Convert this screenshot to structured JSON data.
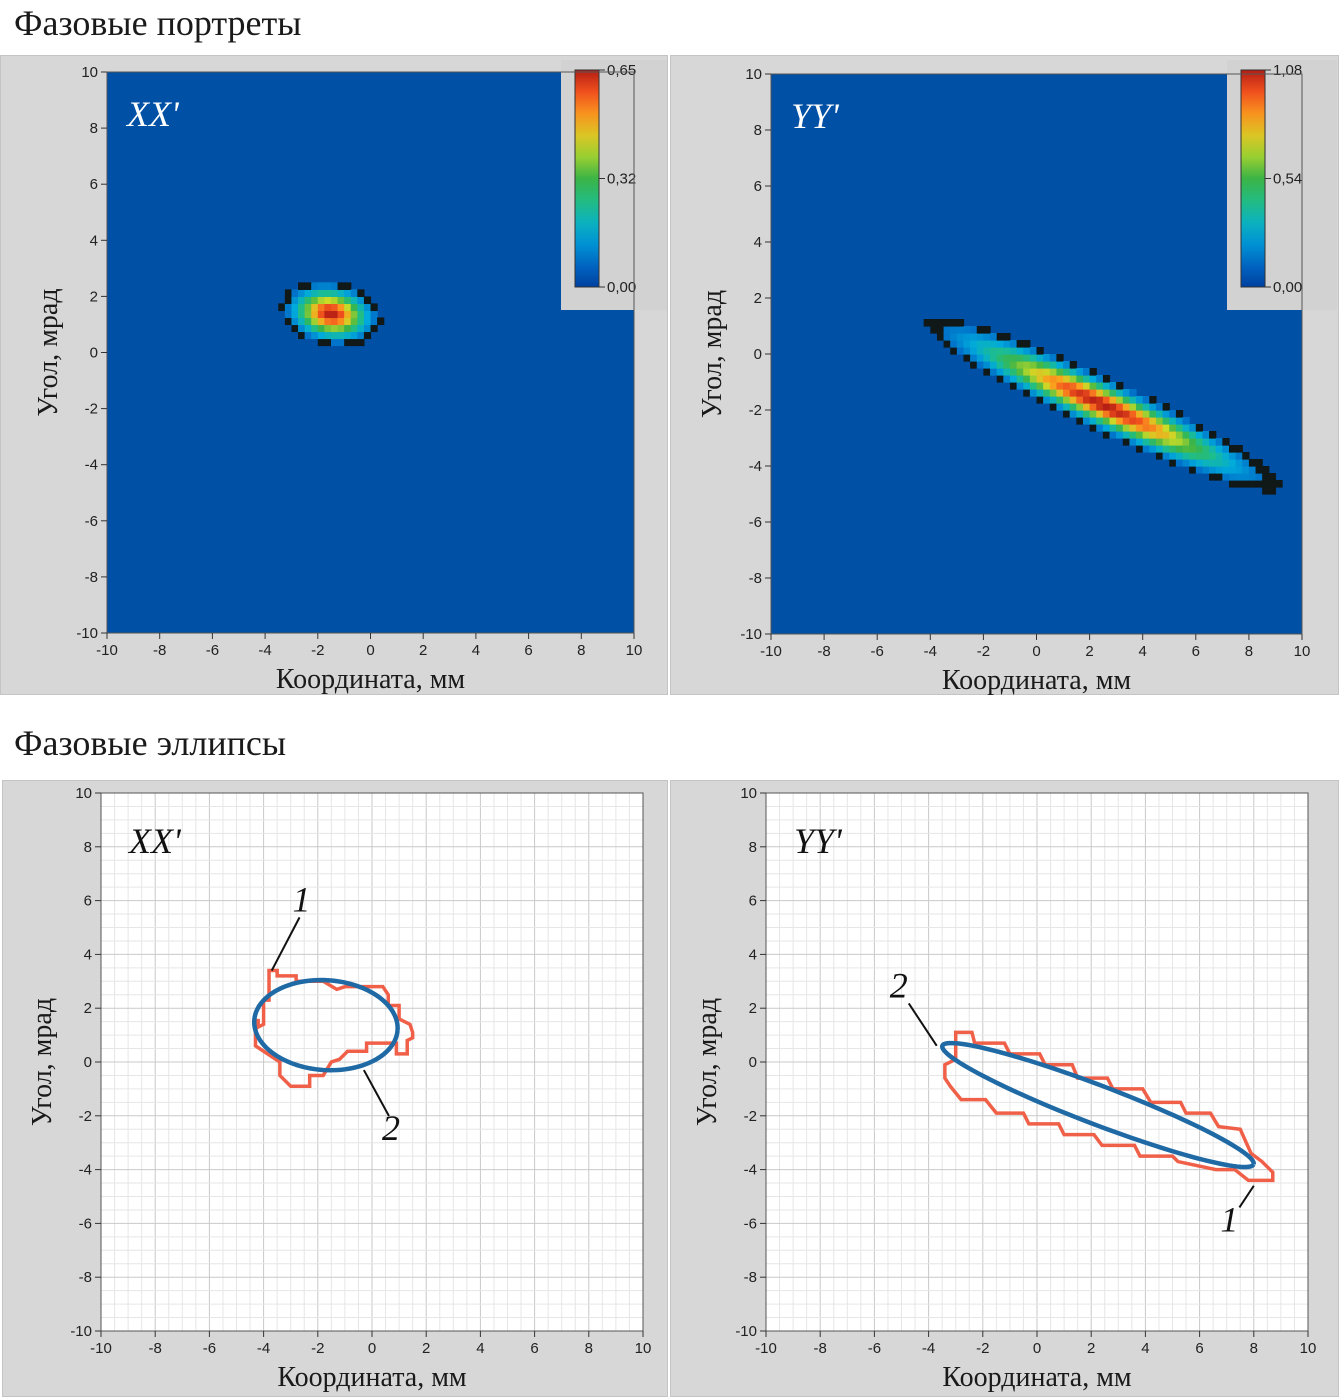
{
  "sections": {
    "top_title": "Фазовые портреты",
    "bottom_title": "Фазовые эллипсы"
  },
  "chart_data": [
    {
      "id": "portrait-xx",
      "type": "heatmap",
      "panel_label": "XX'",
      "xlabel": "Координата, мм",
      "ylabel": "Угол, мрад",
      "xlim": [
        -10,
        10
      ],
      "ylim": [
        -10,
        10
      ],
      "xticks": [
        -10,
        -8,
        -6,
        -4,
        -2,
        0,
        2,
        4,
        6,
        8,
        10
      ],
      "yticks": [
        -10,
        -8,
        -6,
        -4,
        -2,
        0,
        2,
        4,
        6,
        8,
        10
      ],
      "grid": false,
      "colorbar": {
        "ticks": [
          "0,65",
          "0,32",
          "0,00"
        ],
        "min": 0.0,
        "max": 0.65,
        "placement": "top-right"
      },
      "distribution": {
        "center": [
          -1.5,
          1.4
        ],
        "spread": [
          1.5,
          0.9
        ],
        "tilt": -0.15,
        "peak": 0.65
      }
    },
    {
      "id": "portrait-yy",
      "type": "heatmap",
      "panel_label": "YY'",
      "xlabel": "Координата, мм",
      "ylabel": "Угол, мрад",
      "xlim": [
        -10,
        10
      ],
      "ylim": [
        -10,
        10
      ],
      "xticks": [
        -10,
        -8,
        -6,
        -4,
        -2,
        0,
        2,
        4,
        6,
        8,
        10
      ],
      "yticks": [
        -10,
        -8,
        -6,
        -4,
        -2,
        0,
        2,
        4,
        6,
        8,
        10
      ],
      "grid": false,
      "colorbar": {
        "ticks": [
          "1,08",
          "0,54",
          "0,00"
        ],
        "min": 0.0,
        "max": 1.08,
        "placement": "top-right"
      },
      "distribution": {
        "center": [
          2.5,
          -1.8
        ],
        "spread": [
          5.8,
          0.75
        ],
        "tilt": -0.42,
        "peak": 1.08
      }
    },
    {
      "id": "ellipse-xx",
      "type": "line",
      "panel_label": "XX'",
      "xlabel": "Координата, мм",
      "ylabel": "Угол, мрад",
      "xlim": [
        -10,
        10
      ],
      "ylim": [
        -10,
        10
      ],
      "xticks": [
        -10,
        -8,
        -6,
        -4,
        -2,
        0,
        2,
        4,
        6,
        8,
        10
      ],
      "yticks": [
        -10,
        -8,
        -6,
        -4,
        -2,
        0,
        2,
        4,
        6,
        8,
        10
      ],
      "grid": true,
      "colors": {
        "contour": "#f06048",
        "ellipse": "#1f6aa5"
      },
      "series": [
        {
          "label": "1",
          "x": [
            -3.8,
            -3.5,
            -3.5,
            -2.8,
            -2.8,
            -1.8,
            -1.3,
            -1.0,
            -0.2,
            0.4,
            0.6,
            0.6,
            1.0,
            1.0,
            1.4,
            1.5,
            1.5,
            1.3,
            1.3,
            0.9,
            0.9,
            -0.2,
            -0.2,
            -0.9,
            -1.2,
            -1.5,
            -1.8,
            -2.3,
            -2.3,
            -3.0,
            -3.4,
            -3.4,
            -4.3,
            -4.3,
            -4.2,
            -4.2,
            -4.0,
            -4.0,
            -3.8,
            -3.8
          ],
          "y": [
            3.4,
            3.4,
            3.2,
            3.2,
            3.0,
            3.0,
            2.7,
            2.8,
            2.8,
            2.8,
            2.5,
            2.1,
            2.1,
            1.6,
            1.4,
            1.1,
            0.9,
            0.8,
            0.3,
            0.3,
            0.7,
            0.7,
            0.4,
            0.4,
            0.1,
            0.0,
            -0.5,
            -0.5,
            -0.9,
            -0.9,
            -0.5,
            0.0,
            0.6,
            1.1,
            1.6,
            1.3,
            1.4,
            2.3,
            2.3,
            3.4
          ]
        },
        {
          "label": "2",
          "ellipse": {
            "cx": -1.7,
            "cy": 1.37,
            "rx": 2.65,
            "ry": 1.67,
            "angle_deg": -4
          }
        }
      ],
      "annotations": [
        {
          "text": "1",
          "at": [
            -2.6,
            5.6
          ],
          "to": [
            -3.7,
            3.4
          ]
        },
        {
          "text": "2",
          "at": [
            0.7,
            -2.9
          ],
          "to": [
            -0.3,
            -0.3
          ]
        }
      ]
    },
    {
      "id": "ellipse-yy",
      "type": "line",
      "panel_label": "YY'",
      "xlabel": "Координата, мм",
      "ylabel": "Угол, мрад",
      "xlim": [
        -10,
        10
      ],
      "ylim": [
        -10,
        10
      ],
      "xticks": [
        -10,
        -8,
        -6,
        -4,
        -2,
        0,
        2,
        4,
        6,
        8,
        10
      ],
      "yticks": [
        -10,
        -8,
        -6,
        -4,
        -2,
        0,
        2,
        4,
        6,
        8,
        10
      ],
      "grid": true,
      "colors": {
        "contour": "#f06048",
        "ellipse": "#1f6aa5"
      },
      "series": [
        {
          "label": "1",
          "x": [
            -3.0,
            -2.4,
            -2.3,
            -1.2,
            -1.0,
            0.1,
            0.3,
            1.3,
            1.5,
            2.6,
            2.8,
            3.9,
            4.2,
            5.3,
            5.5,
            6.4,
            6.7,
            7.5,
            7.9,
            8.3,
            8.7,
            8.7,
            7.8,
            7.3,
            6.6,
            5.2,
            5.0,
            3.8,
            3.6,
            2.4,
            2.1,
            1.0,
            0.8,
            -0.3,
            -0.5,
            -1.5,
            -1.9,
            -2.8,
            -3.2,
            -3.4,
            -3.4,
            -3.0,
            -3.0,
            -3.0
          ],
          "y": [
            1.1,
            1.1,
            0.7,
            0.7,
            0.3,
            0.3,
            -0.1,
            -0.1,
            -0.6,
            -0.6,
            -1.0,
            -1.0,
            -1.5,
            -1.5,
            -1.9,
            -1.9,
            -2.4,
            -2.5,
            -3.4,
            -3.7,
            -4.1,
            -4.4,
            -4.4,
            -4.0,
            -4.0,
            -3.7,
            -3.5,
            -3.5,
            -3.1,
            -3.1,
            -2.7,
            -2.7,
            -2.3,
            -2.3,
            -1.9,
            -1.9,
            -1.4,
            -1.4,
            -0.9,
            -0.6,
            -0.1,
            0.1,
            0.5,
            1.1
          ]
        },
        {
          "label": "2",
          "ellipse": {
            "cx": 2.25,
            "cy": -1.6,
            "rx": 6.15,
            "ry": 0.72,
            "angle_deg": -21
          }
        }
      ],
      "annotations": [
        {
          "text": "1",
          "at": [
            7.1,
            -6.3
          ],
          "to": [
            8.0,
            -4.6
          ]
        },
        {
          "text": "2",
          "at": [
            -5.1,
            2.4
          ],
          "to": [
            -3.7,
            0.6
          ]
        }
      ]
    }
  ]
}
